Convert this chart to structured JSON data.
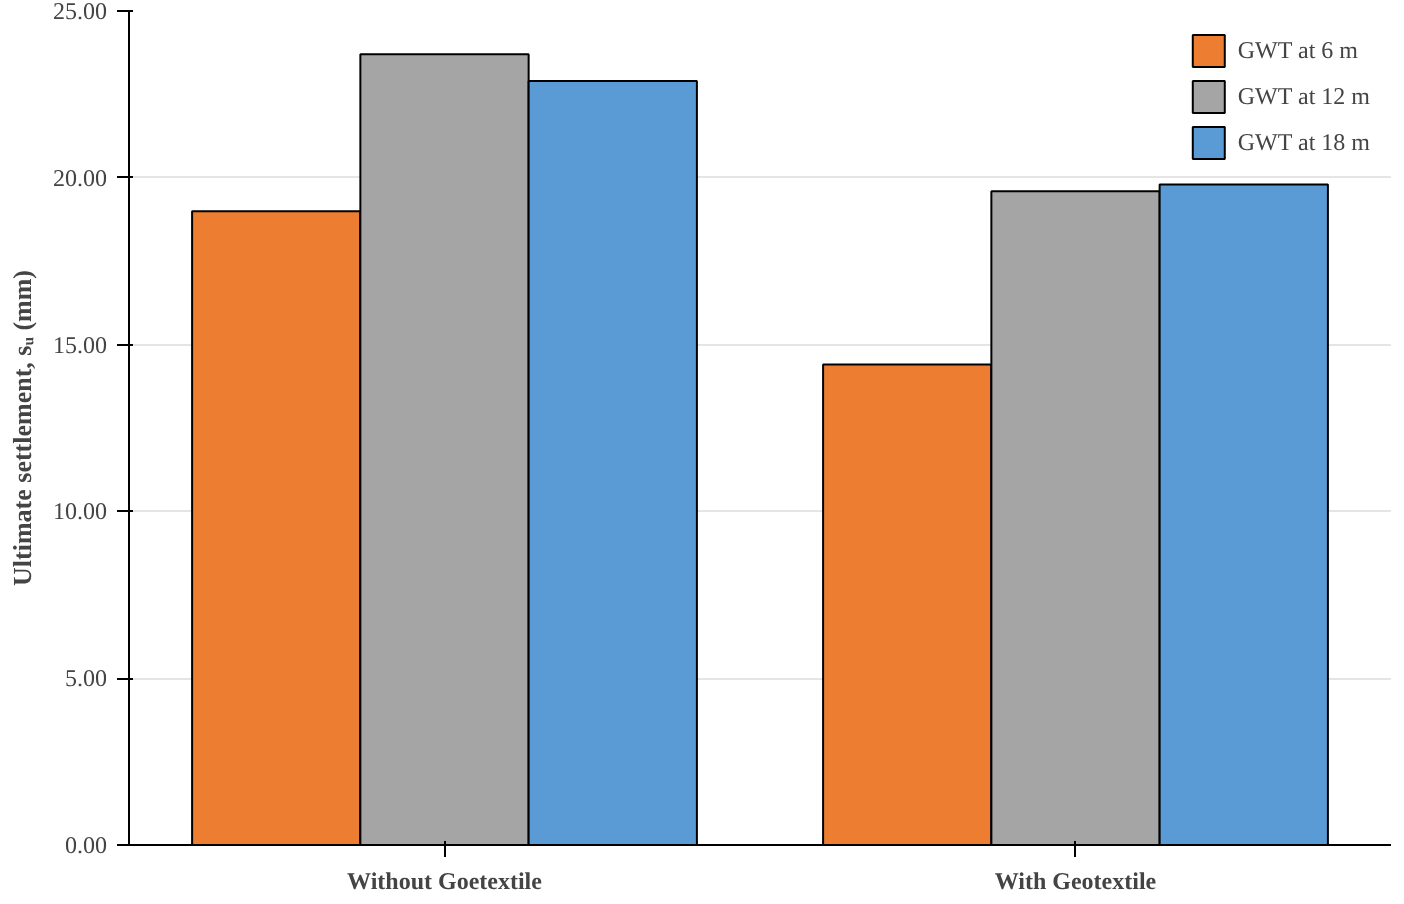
{
  "chart_data": {
    "type": "bar",
    "ylabel": "Ultimate settlement, sᵤ (mm)",
    "categories": [
      "Without Goetextile",
      "With Geotextile"
    ],
    "series": [
      {
        "name": "GWT at 6 m",
        "color": "#ed7d31",
        "values": [
          19.0,
          14.4
        ]
      },
      {
        "name": "GWT at 12 m",
        "color": "#a5a5a5",
        "values": [
          23.7,
          19.6
        ]
      },
      {
        "name": "GWT at 18 m",
        "color": "#5b9bd5",
        "values": [
          22.9,
          19.8
        ]
      }
    ],
    "ylim": [
      0,
      25
    ],
    "yticks": [
      {
        "value": 0,
        "label": "0.00"
      },
      {
        "value": 5,
        "label": "5.00"
      },
      {
        "value": 10,
        "label": "10.00"
      },
      {
        "value": 15,
        "label": "15.00"
      },
      {
        "value": 20,
        "label": "20.00"
      },
      {
        "value": 25,
        "label": "25.00"
      }
    ],
    "grid": "y",
    "legend": "top right"
  }
}
